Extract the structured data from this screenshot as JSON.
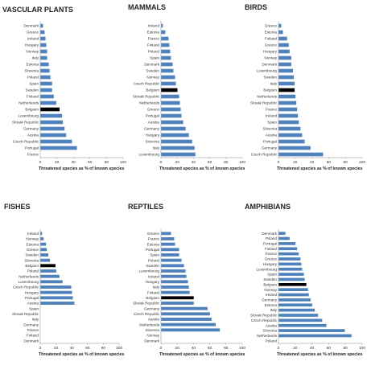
{
  "colors": {
    "bar": "#4f81bd",
    "highlight": "#000000",
    "axis": "#888888"
  },
  "chart_data": [
    {
      "type": "bar",
      "orientation": "horizontal",
      "title": "VASCULAR PLANTS",
      "xlabel": "Threatened species as % of known species",
      "xlim": [
        0,
        100
      ],
      "xticks": [
        "0",
        "20",
        "40",
        "60",
        "80",
        "100"
      ],
      "highlight": "Belgium",
      "categories": [
        "Denmark",
        "Greece",
        "Ireland",
        "Hungary",
        "Norway",
        "Italy",
        "Estonia",
        "Slovenia",
        "Poland",
        "Spain",
        "Sweden",
        "Finland",
        "Netherlands",
        "Belgium",
        "Luxembourg",
        "Slovak Republic",
        "Germany",
        "Austria",
        "Czech Republic",
        "Portugal",
        "France"
      ],
      "values": [
        3,
        5,
        6,
        7,
        8,
        8,
        10,
        11,
        12,
        14,
        14,
        16,
        19,
        23,
        26,
        27,
        29,
        31,
        38,
        44,
        0
      ]
    },
    {
      "type": "bar",
      "orientation": "horizontal",
      "title": "MAMMALS",
      "xlabel": "Threatened species as % of known species",
      "xlim": [
        0,
        100
      ],
      "xticks": [
        "0",
        "20",
        "40",
        "60",
        "80",
        "100"
      ],
      "highlight": "Belgium",
      "categories": [
        "Ireland",
        "Estonia",
        "France",
        "Finland",
        "Poland",
        "Spain",
        "Denmark",
        "Sweden",
        "Norway",
        "Czech Republic",
        "Belgium",
        "Slovak Republic",
        "Netherlands",
        "Greece",
        "Portugal",
        "Austria",
        "Germany",
        "Hungary",
        "Slovenia",
        "Italy",
        "Luxembourg"
      ],
      "values": [
        2,
        5,
        9,
        10,
        11,
        12,
        14,
        15,
        17,
        18,
        20,
        22,
        23,
        24,
        25,
        27,
        30,
        34,
        38,
        41,
        42
      ]
    },
    {
      "type": "bar",
      "orientation": "horizontal",
      "title": "BIRDS",
      "xlabel": "Threatened species as % of known species",
      "xlim": [
        0,
        100
      ],
      "xticks": [
        "0",
        "20",
        "40",
        "60",
        "80",
        "100"
      ],
      "highlight": "Belgium",
      "categories": [
        "Greece",
        "Estonia",
        "Finland",
        "Greece",
        "Hungary",
        "Norway",
        "Denmark",
        "Luxembourg",
        "Sweden",
        "Italy",
        "Belgium",
        "Netherlands",
        "Slovak Republic",
        "France",
        "Ireland",
        "Spain",
        "Slovenia",
        "Austria",
        "Portugal",
        "Germany",
        "Czech Republic"
      ],
      "values": [
        3,
        5,
        10,
        12,
        13,
        15,
        15,
        17,
        18,
        19,
        19,
        20,
        21,
        22,
        23,
        24,
        26,
        28,
        31,
        38,
        53
      ]
    },
    {
      "type": "bar",
      "orientation": "horizontal",
      "title": "FISHES",
      "xlabel": "Threatened species as % of known species",
      "xlim": [
        0,
        100
      ],
      "xticks": [
        "0",
        "20",
        "40",
        "60",
        "80",
        "100"
      ],
      "highlight": "Belgium",
      "categories": [
        "Ireland",
        "Norway",
        "Estonia",
        "Greece",
        "Sweden",
        "Slovenia",
        "Belgium",
        "Poland",
        "Netherlands",
        "Luxembourg",
        "Czech Republic",
        "Hungary",
        "Portugal",
        "Austria",
        "Spain",
        "Slovak Republic",
        "Italy",
        "Germany",
        "France",
        "Finland",
        "Denmark"
      ],
      "values": [
        2,
        4,
        7,
        8,
        10,
        12,
        19,
        20,
        24,
        28,
        39,
        40,
        41,
        43,
        0,
        0,
        0,
        0,
        0,
        0,
        0
      ]
    },
    {
      "type": "bar",
      "orientation": "horizontal",
      "title": "REPTILES",
      "xlabel": "Threatened species as % of known species",
      "xlim": [
        0,
        100
      ],
      "xticks": [
        "0",
        "20",
        "40",
        "60",
        "80",
        "100"
      ],
      "highlight": "Belgium",
      "categories": [
        "Greece",
        "France",
        "Estonia",
        "Portugal",
        "Spain",
        "Poland",
        "Sweden",
        "Luxembourg",
        "Ireland",
        "Hungary",
        "Italy",
        "Finland",
        "Belgium",
        "Slovak Republic",
        "Germany",
        "Czech Republic",
        "Austria",
        "Netherlands",
        "Slovenia",
        "Norway",
        "Denmark"
      ],
      "values": [
        12,
        16,
        17,
        22,
        22,
        25,
        28,
        30,
        31,
        33,
        34,
        35,
        40,
        40,
        57,
        60,
        62,
        67,
        72,
        0,
        0
      ]
    },
    {
      "type": "bar",
      "orientation": "horizontal",
      "title": "AMPHIBIANS",
      "xlabel": "Threatened species as % of known species",
      "xlim": [
        0,
        100
      ],
      "xticks": [
        "0",
        "20",
        "40",
        "60",
        "80",
        "100"
      ],
      "highlight": "Belgium",
      "categories": [
        "Denmark",
        "Poland",
        "Portugal",
        "Finland",
        "France",
        "Greece",
        "Hungary",
        "Luxembourg",
        "Spain",
        "Sweden",
        "Belgium",
        "Norway",
        "Ireland",
        "Germany",
        "Estonia",
        "Italy",
        "Slovak Republic",
        "Czech Republic",
        "Austria",
        "Slovenia",
        "Netherlands",
        "Poland"
      ],
      "values": [
        8,
        13,
        20,
        22,
        24,
        26,
        27,
        28,
        30,
        31,
        33,
        35,
        36,
        38,
        40,
        43,
        47,
        52,
        57,
        79,
        87,
        0
      ]
    }
  ]
}
